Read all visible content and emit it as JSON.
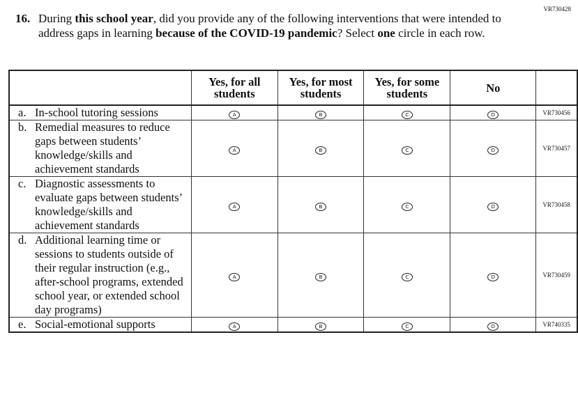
{
  "form_code": "VR730428",
  "question": {
    "number": "16.",
    "parts": [
      "During ",
      "this school year",
      ", did you provide any of the following interventions that were intended to address gaps in learning ",
      "because of the COVID-19 pandemic",
      "? Select ",
      "one",
      " circle in each row."
    ]
  },
  "table": {
    "columns": [
      "Yes, for all students",
      "Yes, for most students",
      "Yes, for some students",
      "No"
    ],
    "options": [
      "A",
      "B",
      "C",
      "D"
    ],
    "rows": [
      {
        "label": "a.",
        "text": "In-school tutoring sessions",
        "code": "VR730456"
      },
      {
        "label": "b.",
        "text": "Remedial measures to reduce gaps between students’ knowledge/skills and achievement standards",
        "code": "VR730457"
      },
      {
        "label": "c.",
        "text": "Diagnostic assessments to evaluate gaps between students’ knowledge/skills and achievement standards",
        "code": "VR730458"
      },
      {
        "label": "d.",
        "text": "Additional learning time or sessions to students outside of their regular instruction (e.g., after-school programs, extended school year, or extended school day programs)",
        "code": "VR730459"
      },
      {
        "label": "e.",
        "text": "Social-emotional supports",
        "code": "VR740335"
      }
    ]
  }
}
